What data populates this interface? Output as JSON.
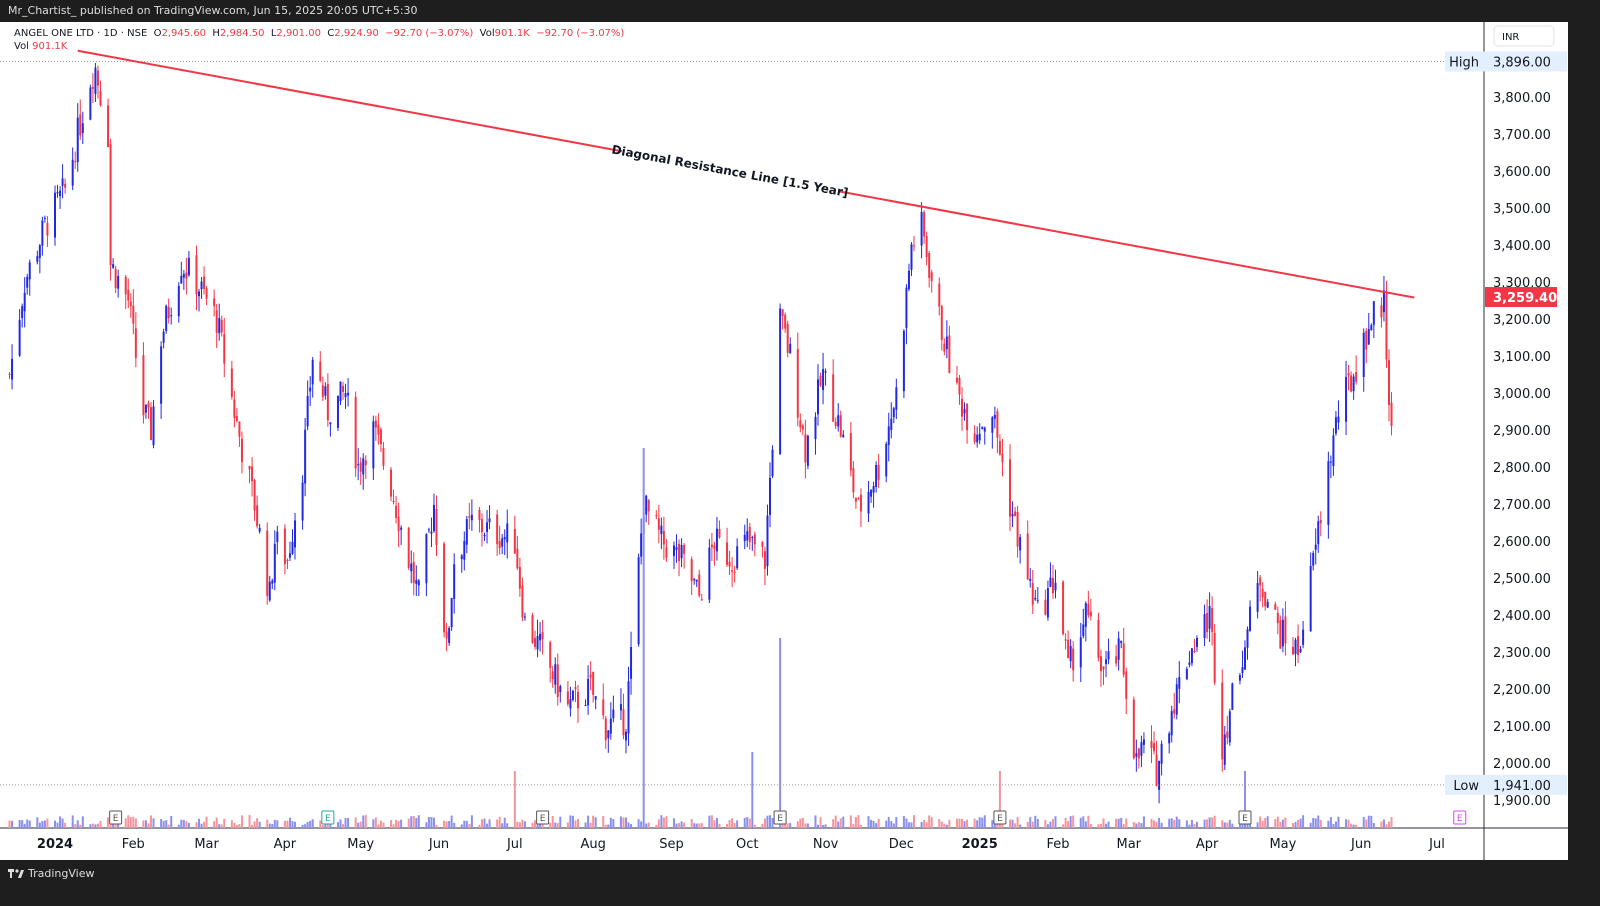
{
  "topbar": {
    "publisher": "Mr_Chartist_ published on TradingView.com, Jun 15, 2025 20:05 UTC+5:30"
  },
  "legend": {
    "symbol": "ANGEL ONE LTD · 1D · NSE",
    "o_label": "O",
    "o": "2,945.60",
    "h_label": "H",
    "h": "2,984.50",
    "l_label": "L",
    "l": "2,901.00",
    "c_label": "C",
    "c": "2,924.90",
    "change": "−92.70 (−3.07%)",
    "vol_label": "Vol",
    "vol": "901.1K",
    "vol_change": "−92.70 (−3.07%)",
    "vol_row_label": "Vol",
    "vol_row_value": "901.1K"
  },
  "bottombar": {
    "brand": "TradingView"
  },
  "chart_data": {
    "type": "candlestick",
    "currency": "INR",
    "colors": {
      "up": "#2129e0",
      "down": "#f23645",
      "vol_up": "#8a8ff0",
      "vol_down": "#f7939b",
      "line": "#f23645"
    },
    "y_ticks": [
      "1,900.00",
      "2,000.00",
      "2,100.00",
      "2,200.00",
      "2,300.00",
      "2,400.00",
      "2,500.00",
      "2,600.00",
      "2,700.00",
      "2,800.00",
      "2,900.00",
      "3,000.00",
      "3,100.00",
      "3,200.00",
      "3,300.00",
      "3,400.00",
      "3,500.00",
      "3,600.00",
      "3,700.00",
      "3,800.00"
    ],
    "x_ticks": [
      {
        "label": "2024",
        "date": "2024-01-01",
        "bold": true
      },
      {
        "label": "Feb",
        "date": "2024-02-01"
      },
      {
        "label": "Mar",
        "date": "2024-03-01"
      },
      {
        "label": "Apr",
        "date": "2024-04-01"
      },
      {
        "label": "May",
        "date": "2024-05-01"
      },
      {
        "label": "Jun",
        "date": "2024-06-01"
      },
      {
        "label": "Jul",
        "date": "2024-07-01"
      },
      {
        "label": "Aug",
        "date": "2024-08-01"
      },
      {
        "label": "Sep",
        "date": "2024-09-01"
      },
      {
        "label": "Oct",
        "date": "2024-10-01"
      },
      {
        "label": "Nov",
        "date": "2024-11-01"
      },
      {
        "label": "Dec",
        "date": "2024-12-01"
      },
      {
        "label": "2025",
        "date": "2025-01-01",
        "bold": true
      },
      {
        "label": "Feb",
        "date": "2025-02-01"
      },
      {
        "label": "Mar",
        "date": "2025-03-01"
      },
      {
        "label": "Apr",
        "date": "2025-04-01"
      },
      {
        "label": "May",
        "date": "2025-05-01"
      },
      {
        "label": "Jun",
        "date": "2025-06-01"
      },
      {
        "label": "Jul",
        "date": "2025-07-01"
      }
    ],
    "high_marker": {
      "label": "High",
      "value": "3,896.00"
    },
    "low_marker": {
      "label": "Low",
      "value": "1,941.00"
    },
    "last_price": "3,259.40",
    "resistance_line": {
      "label": "Diagonal Resistance Line [1.5 Year]",
      "start": [
        "2024-01-10",
        3925
      ],
      "end": [
        "2025-06-22",
        3258
      ]
    },
    "earnings": [
      {
        "date": "2024-01-25",
        "color": "#555"
      },
      {
        "date": "2024-04-18",
        "color": "#26a69a"
      },
      {
        "date": "2024-07-12",
        "color": "#555"
      },
      {
        "date": "2024-10-14",
        "color": "#555"
      },
      {
        "date": "2025-01-09",
        "color": "#555"
      },
      {
        "date": "2025-04-16",
        "color": "#555"
      },
      {
        "date": "2025-07-10",
        "color": "#e040fb"
      }
    ],
    "earnings_label": "E",
    "close_path": [
      [
        "2023-12-14",
        3050
      ],
      [
        "2023-12-20",
        3300
      ],
      [
        "2023-12-28",
        3450
      ],
      [
        "2024-01-05",
        3550
      ],
      [
        "2024-01-10",
        3700
      ],
      [
        "2024-01-15",
        3850
      ],
      [
        "2024-01-17",
        3880
      ],
      [
        "2024-01-22",
        3700
      ],
      [
        "2024-01-23",
        3350
      ],
      [
        "2024-01-30",
        3250
      ],
      [
        "2024-02-05",
        2950
      ],
      [
        "2024-02-08",
        2900
      ],
      [
        "2024-02-12",
        3150
      ],
      [
        "2024-02-20",
        3350
      ],
      [
        "2024-02-26",
        3300
      ],
      [
        "2024-03-05",
        3200
      ],
      [
        "2024-03-12",
        2950
      ],
      [
        "2024-03-15",
        2850
      ],
      [
        "2024-03-20",
        2700
      ],
      [
        "2024-03-26",
        2450
      ],
      [
        "2024-03-28",
        2600
      ],
      [
        "2024-04-02",
        2550
      ],
      [
        "2024-04-08",
        2800
      ],
      [
        "2024-04-12",
        3100
      ],
      [
        "2024-04-18",
        2950
      ],
      [
        "2024-04-25",
        3000
      ],
      [
        "2024-04-30",
        2800
      ],
      [
        "2024-05-06",
        2900
      ],
      [
        "2024-05-13",
        2750
      ],
      [
        "2024-05-20",
        2550
      ],
      [
        "2024-05-24",
        2450
      ],
      [
        "2024-05-30",
        2700
      ],
      [
        "2024-06-04",
        2300
      ],
      [
        "2024-06-07",
        2550
      ],
      [
        "2024-06-14",
        2650
      ],
      [
        "2024-06-24",
        2620
      ],
      [
        "2024-07-01",
        2600
      ],
      [
        "2024-07-05",
        2380
      ],
      [
        "2024-07-12",
        2300
      ],
      [
        "2024-07-22",
        2150
      ],
      [
        "2024-07-31",
        2200
      ],
      [
        "2024-08-06",
        2100
      ],
      [
        "2024-08-14",
        2120
      ],
      [
        "2024-08-21",
        2700
      ],
      [
        "2024-08-28",
        2600
      ],
      [
        "2024-09-05",
        2550
      ],
      [
        "2024-09-12",
        2450
      ],
      [
        "2024-09-18",
        2600
      ],
      [
        "2024-09-25",
        2550
      ],
      [
        "2024-10-01",
        2600
      ],
      [
        "2024-10-08",
        2550
      ],
      [
        "2024-10-14",
        3200
      ],
      [
        "2024-10-18",
        3100
      ],
      [
        "2024-10-24",
        2850
      ],
      [
        "2024-10-31",
        3050
      ],
      [
        "2024-11-07",
        2900
      ],
      [
        "2024-11-14",
        2680
      ],
      [
        "2024-11-22",
        2800
      ],
      [
        "2024-11-29",
        3000
      ],
      [
        "2024-12-05",
        3400
      ],
      [
        "2024-12-09",
        3450
      ],
      [
        "2024-12-16",
        3200
      ],
      [
        "2024-12-23",
        3000
      ],
      [
        "2024-12-30",
        2900
      ],
      [
        "2025-01-06",
        2950
      ],
      [
        "2025-01-13",
        2700
      ],
      [
        "2025-01-20",
        2500
      ],
      [
        "2025-01-24",
        2400
      ],
      [
        "2025-01-31",
        2500
      ],
      [
        "2025-02-05",
        2250
      ],
      [
        "2025-02-12",
        2400
      ],
      [
        "2025-02-19",
        2250
      ],
      [
        "2025-02-26",
        2300
      ],
      [
        "2025-03-04",
        2000
      ],
      [
        "2025-03-07",
        2050
      ],
      [
        "2025-03-12",
        1980
      ],
      [
        "2025-03-18",
        2150
      ],
      [
        "2025-03-25",
        2300
      ],
      [
        "2025-04-02",
        2400
      ],
      [
        "2025-04-07",
        2050
      ],
      [
        "2025-04-15",
        2300
      ],
      [
        "2025-04-22",
        2500
      ],
      [
        "2025-04-30",
        2350
      ],
      [
        "2025-05-07",
        2300
      ],
      [
        "2025-05-12",
        2500
      ],
      [
        "2025-05-19",
        2800
      ],
      [
        "2025-05-23",
        2950
      ],
      [
        "2025-05-29",
        3050
      ],
      [
        "2025-06-05",
        3200
      ],
      [
        "2025-06-10",
        3250
      ],
      [
        "2025-06-12",
        3000
      ],
      [
        "2025-06-13",
        2925
      ]
    ],
    "volume_spikes": [
      [
        "2024-08-21",
        1.0
      ],
      [
        "2024-10-14",
        0.5
      ],
      [
        "2024-10-03",
        0.2
      ],
      [
        "2024-07-01",
        0.15
      ],
      [
        "2025-01-09",
        0.15
      ],
      [
        "2025-04-16",
        0.15
      ]
    ]
  }
}
